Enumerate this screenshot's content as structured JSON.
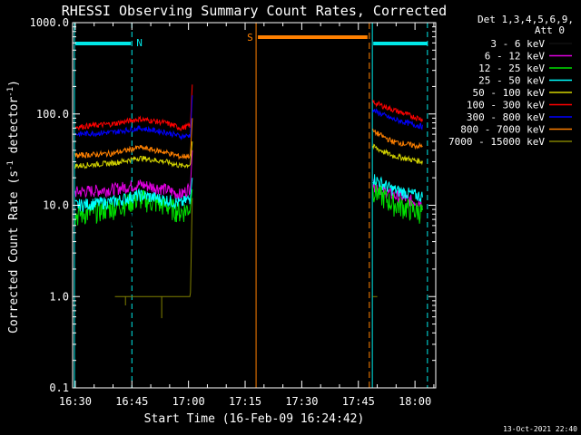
{
  "chart_data": {
    "type": "line",
    "title": "RHESSI Observing Summary Count Rates, Corrected",
    "xlabel": "Start Time (16-Feb-09 16:24:42)",
    "ylabel_main": "Corrected Count Rate (s",
    "ylabel_sup1": "-1",
    "ylabel_mid": " detector",
    "ylabel_sup2": "-1",
    "ylabel_end": ")",
    "yscale": "log",
    "ylim": [
      0.1,
      1000
    ],
    "xlim_minutes": [
      -0.7,
      95.5
    ],
    "y_tick_labels": [
      "1000.0",
      "100.0",
      "10.0",
      "1.0",
      "0.1"
    ],
    "y_tick_values": [
      1000,
      100,
      10,
      1,
      0.1
    ],
    "x_tick_labels": [
      "16:30",
      "16:45",
      "17:00",
      "17:15",
      "17:30",
      "17:45",
      "18:00"
    ],
    "x_tick_minutes": [
      0,
      15,
      30,
      45,
      60,
      75,
      90
    ],
    "legend": {
      "header_line1": "Det 1,3,4,5,6,9,",
      "header_line2": "Att 0",
      "placement": "right"
    },
    "series": [
      {
        "name": "3 - 6 keV",
        "color": "#000000",
        "before_x": [
          0,
          10,
          17,
          24,
          28,
          30.5,
          31
        ],
        "before_y": [
          6.5,
          7.0,
          8.0,
          7.0,
          6.8,
          7.5,
          9
        ],
        "after_x": [
          78.8,
          84,
          90,
          92
        ],
        "after_y": [
          15,
          9.0,
          8.0,
          7.8
        ]
      },
      {
        "name": "6 - 12 keV",
        "color": "#e000e0",
        "before_x": [
          0,
          10,
          17,
          24,
          28,
          30.5,
          31
        ],
        "before_y": [
          14,
          15,
          17,
          15,
          13,
          16,
          40
        ],
        "after_x": [
          78.8,
          84,
          90,
          92
        ],
        "after_y": [
          17,
          13,
          11,
          11
        ]
      },
      {
        "name": "12 - 25 keV",
        "color": "#00e000",
        "before_x": [
          0,
          10,
          17,
          24,
          28,
          30.5,
          31
        ],
        "before_y": [
          7.8,
          9.5,
          12,
          10,
          8.5,
          9.5,
          15
        ],
        "after_x": [
          78.8,
          84,
          90,
          92
        ],
        "after_y": [
          15,
          10.5,
          8.8,
          8.5
        ]
      },
      {
        "name": "25 - 50 keV",
        "color": "#00ffff",
        "before_x": [
          0,
          10,
          17,
          24,
          28,
          30.5,
          31
        ],
        "before_y": [
          10,
          11,
          13,
          11.5,
          10.5,
          12,
          20
        ],
        "after_x": [
          78.8,
          84,
          90,
          92
        ],
        "after_y": [
          20,
          15,
          13,
          12.5
        ]
      },
      {
        "name": "50 - 100 keV",
        "color": "#d4d400",
        "before_x": [
          0,
          10,
          17,
          24,
          28,
          30.5,
          31
        ],
        "before_y": [
          27,
          29,
          33,
          30,
          27,
          28,
          50
        ],
        "after_x": [
          78.8,
          84,
          90,
          92
        ],
        "after_y": [
          44,
          35,
          31,
          30
        ]
      },
      {
        "name": "100 - 300 keV",
        "color": "#ff0000",
        "before_x": [
          0,
          10,
          17,
          24,
          28,
          30.5,
          31
        ],
        "before_y": [
          72,
          78,
          88,
          80,
          70,
          75,
          210
        ],
        "after_x": [
          78.8,
          84,
          90,
          92
        ],
        "after_y": [
          135,
          112,
          92,
          88
        ]
      },
      {
        "name": "300 - 800 keV",
        "color": "#0000ff",
        "before_x": [
          0,
          10,
          17,
          24,
          28,
          30.5,
          31
        ],
        "before_y": [
          60,
          63,
          70,
          63,
          57,
          58,
          160
        ],
        "after_x": [
          78.8,
          84,
          90,
          92
        ],
        "after_y": [
          110,
          88,
          76,
          73
        ]
      },
      {
        "name": "800 - 7000 keV",
        "color": "#ff8000",
        "before_x": [
          0,
          10,
          17,
          24,
          28,
          30.5,
          31
        ],
        "before_y": [
          35,
          37,
          43,
          38,
          34,
          35,
          90
        ],
        "after_x": [
          78.8,
          84,
          90,
          92
        ],
        "after_y": [
          65,
          50,
          45,
          44
        ]
      },
      {
        "name": "7000 - 15000 keV",
        "color": "#808000",
        "before_x": [
          10.5,
          17,
          22.5,
          30.5,
          31
        ],
        "before_y": [
          1.0,
          1.0,
          1.0,
          1.0,
          12
        ],
        "after_x": [
          78.8,
          80
        ],
        "after_y": [
          1.0,
          1.0
        ]
      }
    ],
    "saa_start_minute": 47.9,
    "saa_end_minute": 77.9,
    "night_end_minute": 15.0,
    "night_start_minute": 78.7,
    "night_end2_minute": 93.3,
    "bar_saa_label": "S",
    "bar_night_label": "N",
    "bar_colors": {
      "saa": "#ff8000",
      "night": "#00e8e8"
    }
  },
  "timestamp": "13-Oct-2021 22:40"
}
